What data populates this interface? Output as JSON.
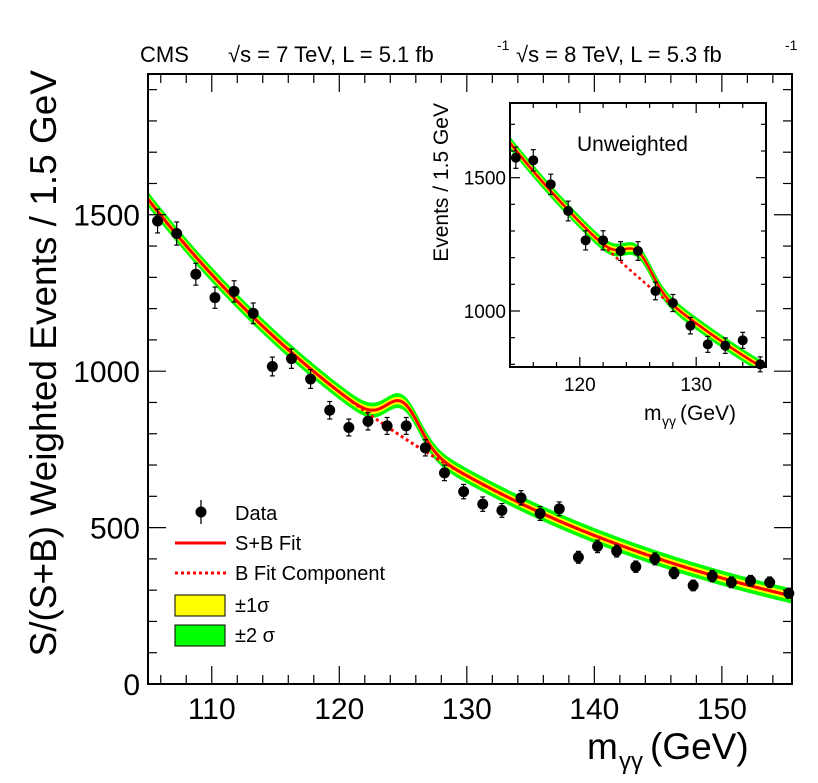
{
  "chart_data": [
    {
      "type": "scatter",
      "header": {
        "experiment": "CMS",
        "label_7tev": "√s = 7 TeV, L = 5.1 fb",
        "label_8tev": "√s = 8 TeV, L = 5.3 fb",
        "lumi_exponent": "-1"
      },
      "xlabel": {
        "m": "m",
        "sub": "γγ",
        "unit": " (GeV)"
      },
      "ylabel": "S/(S+B) Weighted Events / 1.5 GeV",
      "xlim": [
        105,
        155.5
      ],
      "ylim": [
        0,
        1950
      ],
      "xticks": [
        110,
        120,
        130,
        140,
        150
      ],
      "yticks": [
        0,
        500,
        1000,
        1500
      ],
      "data_points": {
        "x": [
          105.75,
          107.25,
          108.75,
          110.25,
          111.75,
          113.25,
          114.75,
          116.25,
          117.75,
          119.25,
          120.75,
          122.25,
          123.75,
          125.25,
          126.75,
          128.25,
          129.75,
          131.25,
          132.75,
          134.25,
          135.75,
          137.25,
          138.75,
          140.25,
          141.75,
          143.25,
          144.75,
          146.25,
          147.75,
          149.25,
          150.75,
          152.25,
          153.75,
          155.25
        ],
        "y": [
          1480,
          1440,
          1310,
          1235,
          1255,
          1185,
          1015,
          1040,
          975,
          875,
          820,
          840,
          825,
          825,
          755,
          675,
          615,
          575,
          555,
          595,
          545,
          560,
          405,
          440,
          425,
          375,
          400,
          355,
          315,
          345,
          325,
          330,
          325,
          290
        ],
        "err": [
          38,
          37,
          35,
          34,
          34,
          33,
          30,
          31,
          30,
          28,
          27,
          28,
          27,
          27,
          26,
          25,
          23,
          23,
          22,
          23,
          22,
          22,
          19,
          20,
          19,
          18,
          19,
          18,
          17,
          18,
          17,
          17,
          17,
          16
        ]
      },
      "series": [
        {
          "name": "S+B Fit",
          "color": "#ff0000",
          "style": "solid",
          "background_at_105": 1550,
          "decay": 0.0338,
          "signal_mass": 125.0,
          "signal_width": 1.3,
          "signal_height": 112
        },
        {
          "name": "B Fit Component",
          "color": "#ff0000",
          "style": "dotted",
          "background_at_105": 1550,
          "decay": 0.0338
        }
      ],
      "bands": [
        {
          "name": "±1σ",
          "color": "#ffff00",
          "halfwidth": 12
        },
        {
          "name": "±2 σ",
          "color": "#00ff00",
          "halfwidth": 24
        }
      ],
      "legend": {
        "position": "bottom-left",
        "entries": [
          {
            "kind": "marker",
            "label": "Data"
          },
          {
            "kind": "line",
            "label": "S+B Fit",
            "color": "#ff0000"
          },
          {
            "kind": "dotted",
            "label": "B Fit Component",
            "color": "#ff0000"
          },
          {
            "kind": "box",
            "label": "±1σ",
            "color": "#ffff00"
          },
          {
            "kind": "box",
            "label": "±2 σ",
            "color": "#00ff00"
          }
        ]
      }
    },
    {
      "type": "scatter",
      "title": "Unweighted",
      "xlabel": {
        "m": "m",
        "sub": "γγ",
        "unit": " (GeV)"
      },
      "ylabel": "Events / 1.5 GeV",
      "xlim": [
        114,
        136
      ],
      "ylim": [
        790,
        1780
      ],
      "xticks": [
        120,
        130
      ],
      "yticks": [
        1000,
        1500
      ],
      "data_points": {
        "x": [
          114.5,
          116.0,
          117.5,
          119.0,
          120.5,
          122.0,
          123.5,
          125.0,
          126.5,
          128.0,
          129.5,
          131.0,
          132.5,
          134.0,
          135.5
        ],
        "y": [
          1575,
          1565,
          1475,
          1375,
          1265,
          1265,
          1225,
          1225,
          1075,
          1030,
          945,
          875,
          870,
          890,
          800
        ],
        "err": [
          40,
          40,
          38,
          37,
          36,
          36,
          35,
          35,
          33,
          32,
          31,
          30,
          29,
          30,
          28
        ]
      },
      "series": [
        {
          "name": "S+B Fit",
          "color": "#ff0000",
          "style": "solid",
          "background_at_114": 1630,
          "decay": 0.0335,
          "signal_mass": 125.0,
          "signal_width": 1.2,
          "signal_height": 95
        },
        {
          "name": "B Fit Component",
          "color": "#ff0000",
          "style": "dotted",
          "background_at_114": 1630,
          "decay": 0.0335
        }
      ],
      "bands": [
        {
          "name": "±1σ",
          "color": "#ffff00",
          "halfwidth": 12
        },
        {
          "name": "±2 σ",
          "color": "#00ff00",
          "halfwidth": 24
        }
      ]
    }
  ]
}
